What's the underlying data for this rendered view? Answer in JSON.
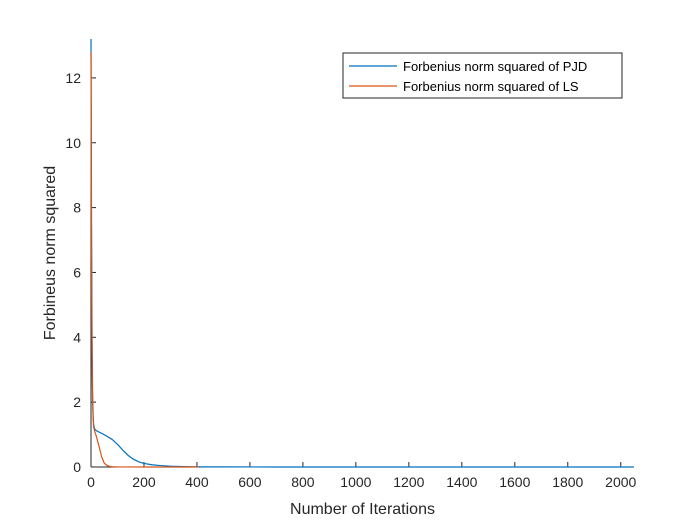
{
  "chart_data": {
    "type": "line",
    "xlabel": "Number of Iterations",
    "ylabel": "Forbineus norm squared",
    "xlim": [
      0,
      2050
    ],
    "ylim": [
      0,
      13.2
    ],
    "xticks": [
      0,
      200,
      400,
      600,
      800,
      1000,
      1200,
      1400,
      1600,
      1800,
      2000
    ],
    "yticks": [
      0,
      2,
      4,
      6,
      8,
      10,
      12
    ],
    "grid": false,
    "legend_position": "top-right",
    "series": [
      {
        "name": "Forbenius norm squared of PJD",
        "color": "#0072BD",
        "x": [
          0,
          2,
          4,
          6,
          8,
          10,
          13,
          16,
          20,
          30,
          40,
          60,
          80,
          100,
          120,
          140,
          160,
          180,
          200,
          230,
          260,
          300,
          350,
          400,
          500,
          700,
          1000,
          1500,
          2050
        ],
        "y": [
          13.2,
          7.5,
          4.0,
          2.3,
          1.6,
          1.3,
          1.2,
          1.15,
          1.12,
          1.08,
          1.04,
          0.95,
          0.85,
          0.7,
          0.52,
          0.36,
          0.24,
          0.16,
          0.11,
          0.07,
          0.045,
          0.025,
          0.012,
          0.006,
          0.003,
          0.001,
          0.0005,
          0.0002,
          0.0001
        ]
      },
      {
        "name": "Forbenius norm squared of LS",
        "color": "#D95319",
        "x": [
          0,
          2,
          4,
          6,
          8,
          10,
          13,
          16,
          20,
          30,
          40,
          50,
          60,
          70,
          80,
          100,
          150,
          200,
          300,
          405
        ],
        "y": [
          12.8,
          6.5,
          3.4,
          2.0,
          1.5,
          1.25,
          1.12,
          1.05,
          0.95,
          0.65,
          0.32,
          0.12,
          0.05,
          0.02,
          0.01,
          0.005,
          0.002,
          0.001,
          0.0005,
          0.0003
        ]
      }
    ]
  }
}
